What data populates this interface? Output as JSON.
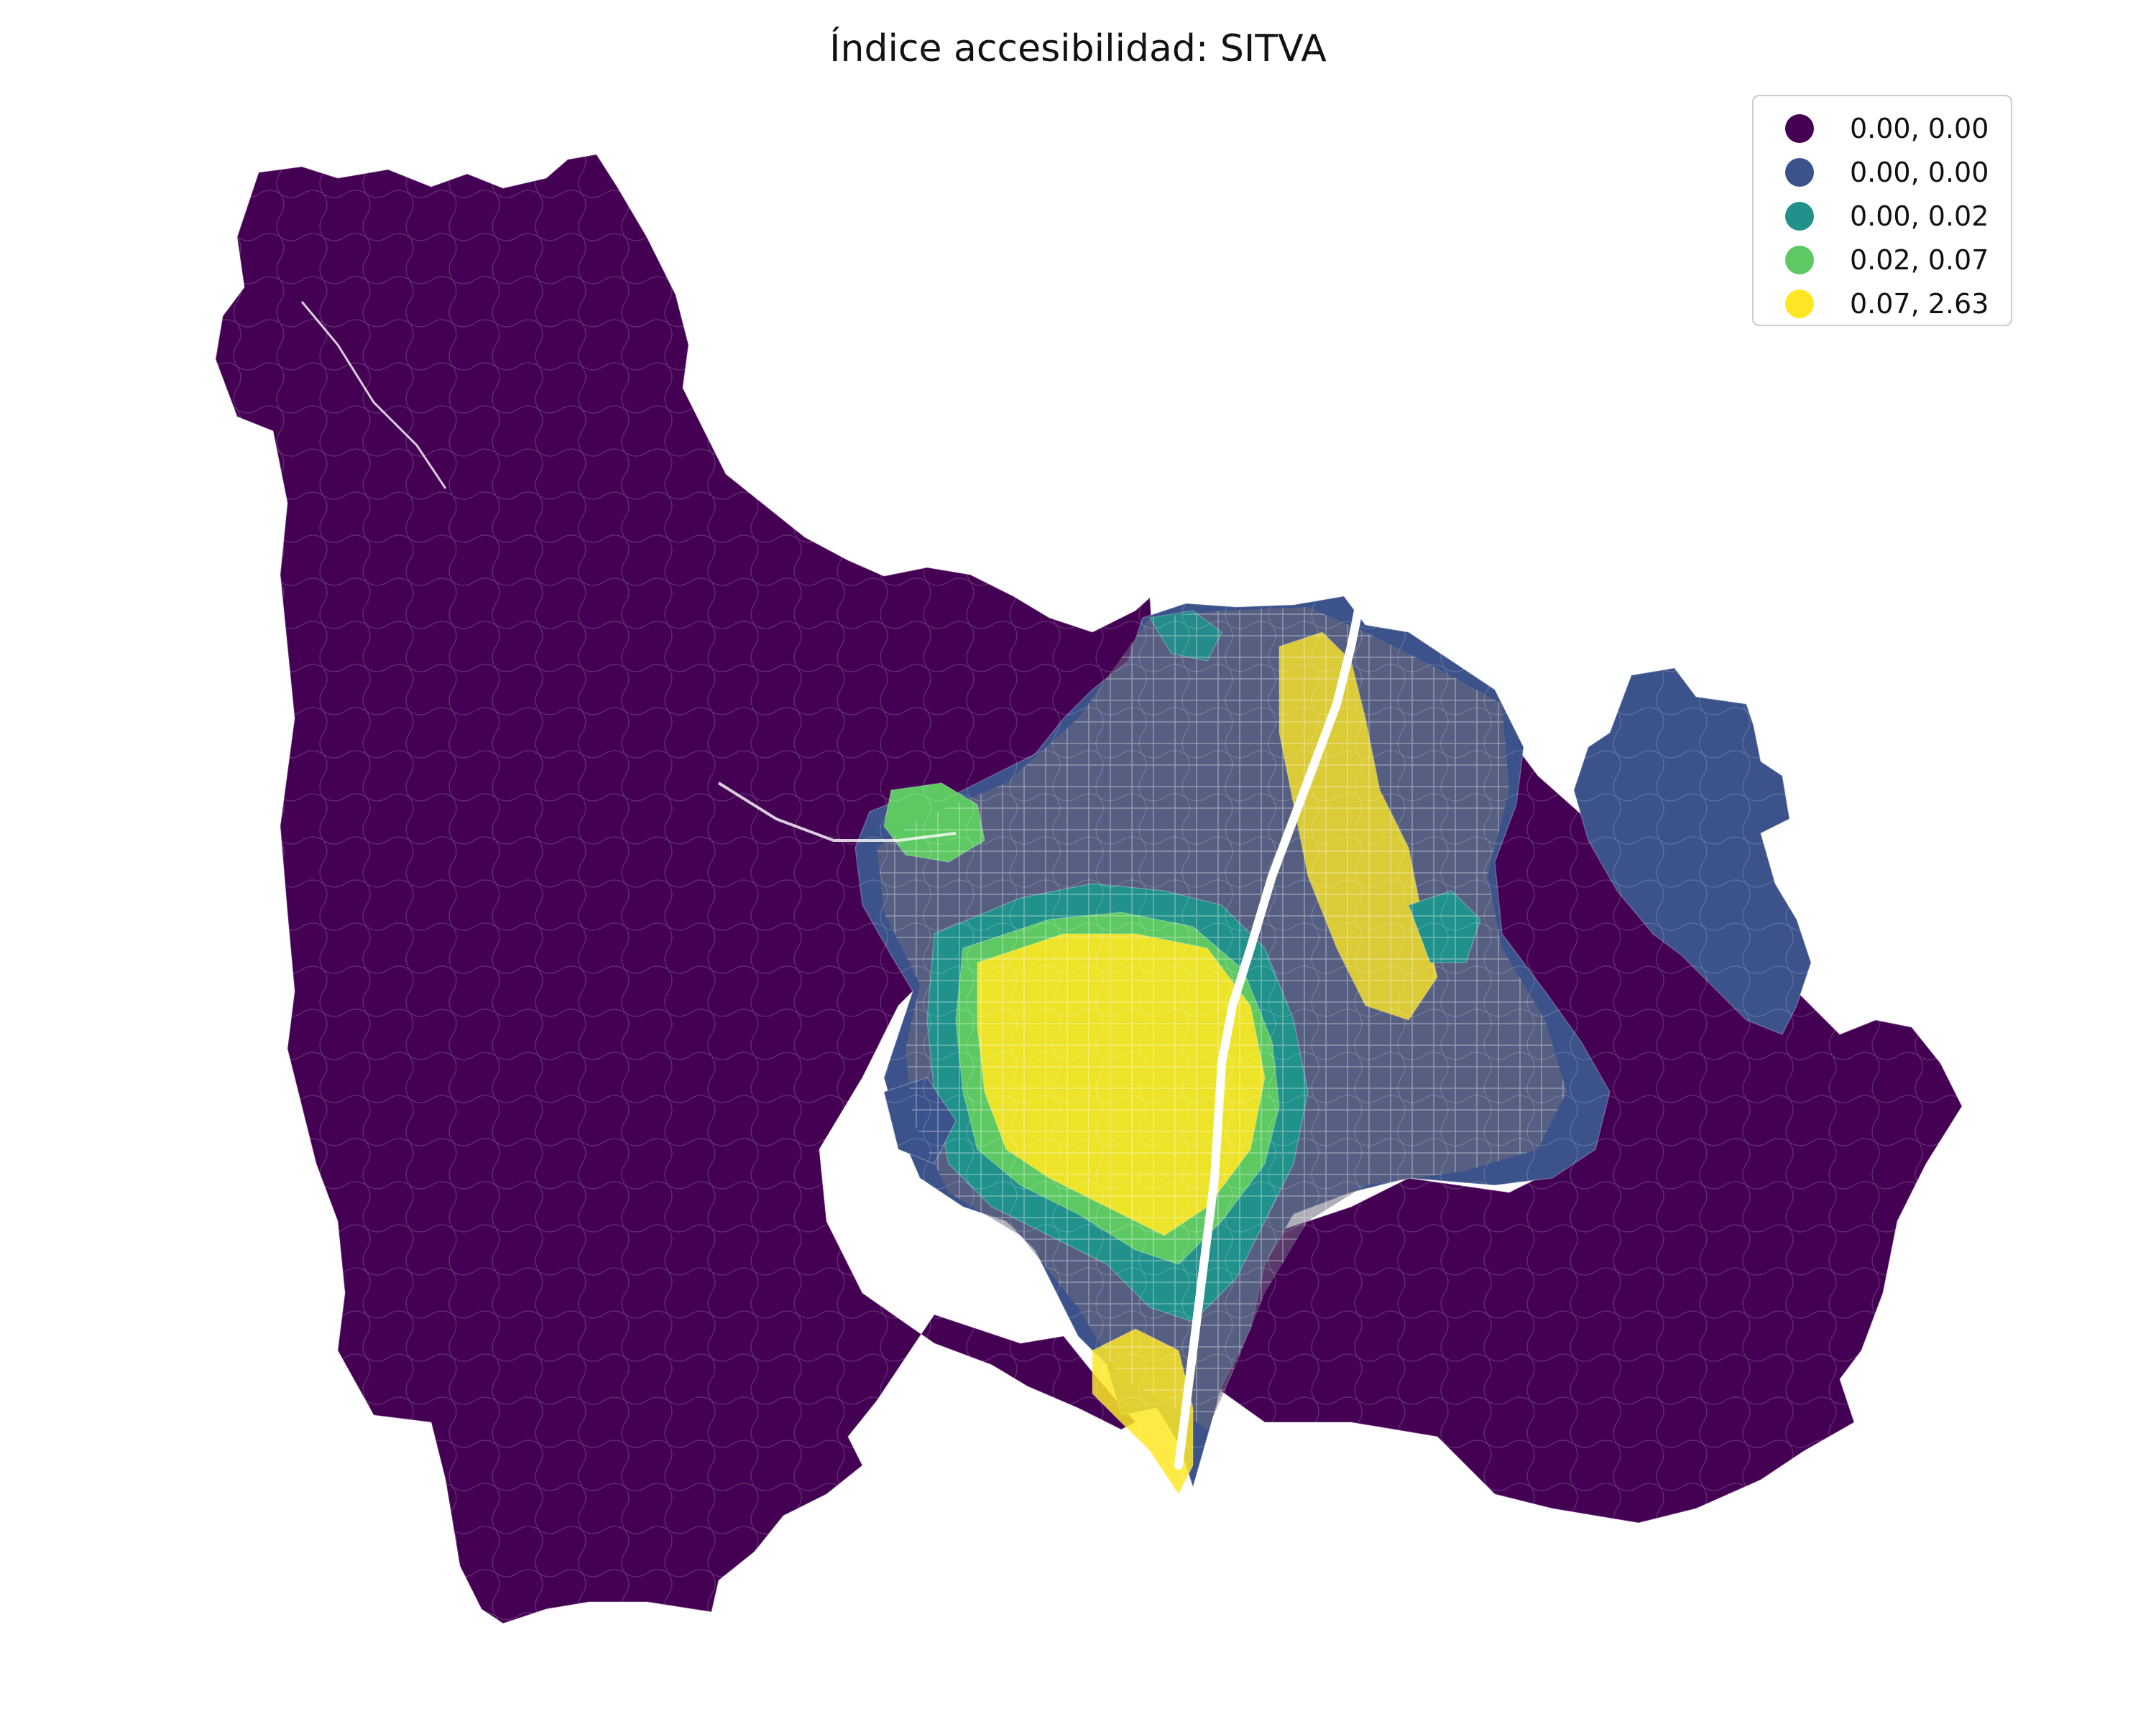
{
  "title": "Índice accesibilidad: SITVA",
  "legend": {
    "items": [
      {
        "label": "0.00, 0.00",
        "color": "#440154"
      },
      {
        "label": "0.00, 0.00",
        "color": "#3b528b"
      },
      {
        "label": "0.00, 0.02",
        "color": "#21918c"
      },
      {
        "label": "0.02, 0.07",
        "color": "#5ec962"
      },
      {
        "label": "0.07, 2.63",
        "color": "#fde725"
      }
    ]
  },
  "map": {
    "classification_colors": [
      "#440154",
      "#3b528b",
      "#21918c",
      "#5ec962",
      "#fde725"
    ],
    "boundary_color": "#ffffff",
    "axes_visible": false
  }
}
